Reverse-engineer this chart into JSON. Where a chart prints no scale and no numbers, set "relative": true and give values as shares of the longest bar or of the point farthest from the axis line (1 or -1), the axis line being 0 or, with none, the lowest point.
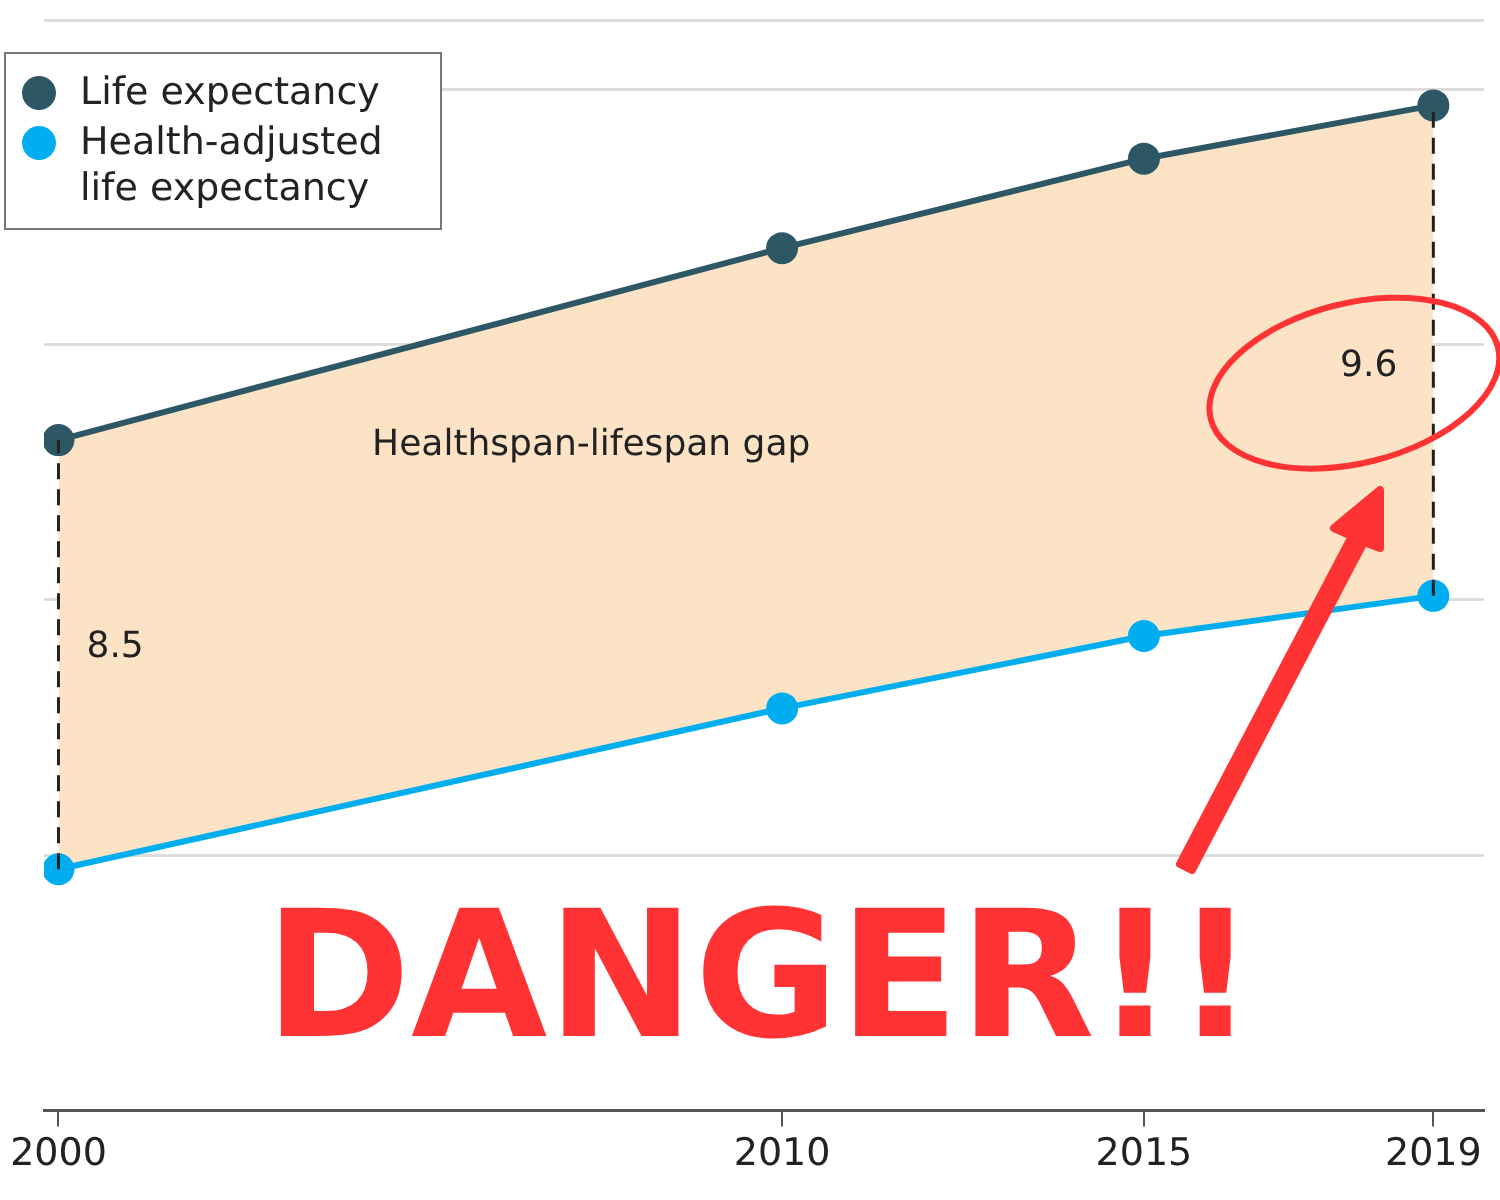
{
  "chart_data": {
    "type": "line",
    "relative": true,
    "x": [
      2000,
      2010,
      2015,
      2019
    ],
    "xlim": [
      1999.8,
      2019.7
    ],
    "xticks": [
      2000,
      2010,
      2015,
      2019
    ],
    "series": [
      {
        "name": "Life expectancy",
        "color": "#2e5766",
        "values": [
          0.667,
          0.858,
          0.947,
          1
        ],
        "lower": [
          0.24,
          0.4,
          0.472,
          0.512
        ],
        "upper": [
          0.667,
          0.858,
          0.947,
          1
        ]
      },
      {
        "name": "Health-adjusted life expectancy",
        "color": "#00aeef",
        "values": [
          0.24,
          0.4,
          0.472,
          0.512
        ]
      }
    ],
    "annotations": [
      "Healthspan-lifespan gap",
      {
        "text": "8.5",
        "x": 2000,
        "y": 0.46
      },
      {
        "text": "9.6",
        "x": 2019,
        "y": 0.74
      },
      "DANGER!!"
    ],
    "ref_lines": [
      {
        "axis": "x",
        "value": 2000,
        "line_style": "dashed"
      },
      {
        "axis": "x",
        "value": 2019,
        "line_style": "dashed"
      }
    ],
    "marker": "circle",
    "grid": "y",
    "legend": "top left"
  }
}
